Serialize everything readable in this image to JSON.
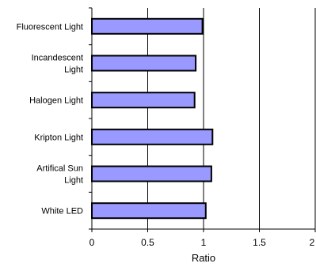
{
  "chart_data": {
    "type": "bar",
    "orientation": "horizontal",
    "categories": [
      [
        "Fluorescent Light"
      ],
      [
        "Incandescent",
        "Light"
      ],
      [
        "Halogen Light"
      ],
      [
        "Kripton Light"
      ],
      [
        "Artifical Sun",
        "Light"
      ],
      [
        "White LED"
      ]
    ],
    "values": [
      0.99,
      0.93,
      0.92,
      1.08,
      1.07,
      1.02
    ],
    "xlabel": "Ratio",
    "xlim": [
      0,
      2
    ],
    "xticks": [
      "0",
      "0.5",
      "1",
      "1.5",
      "2"
    ],
    "grid": "vertical",
    "bar_color": "#9999ff",
    "bar_edge_color": "#000000"
  }
}
